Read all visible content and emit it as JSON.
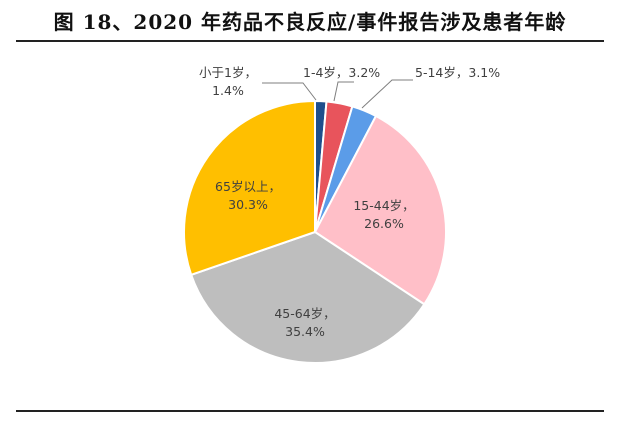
{
  "figure_title": "图 18、2020 年药品不良反应/事件报告涉及患者年龄",
  "chart_data": {
    "type": "pie",
    "title": "图 18、2020 年药品不良反应/事件报告涉及患者年龄",
    "start_angle_deg": 0,
    "direction": "clockwise",
    "slices": [
      {
        "label": "小于1岁",
        "value": 1.4,
        "value_label": "1.4%",
        "color": "#1F4E8C"
      },
      {
        "label": "1-4岁",
        "value": 3.2,
        "value_label": "3.2%",
        "color": "#E8545C"
      },
      {
        "label": "5-14岁",
        "value": 3.1,
        "value_label": "3.1%",
        "color": "#5B9CE8"
      },
      {
        "label": "15-44岁",
        "value": 26.6,
        "value_label": "26.6%",
        "color": "#FFBFC8"
      },
      {
        "label": "45-64岁",
        "value": 35.4,
        "value_label": "35.4%",
        "color": "#BEBEBE"
      },
      {
        "label": "65岁以上",
        "value": 30.3,
        "value_label": "30.3%",
        "color": "#FFBF00"
      }
    ]
  }
}
